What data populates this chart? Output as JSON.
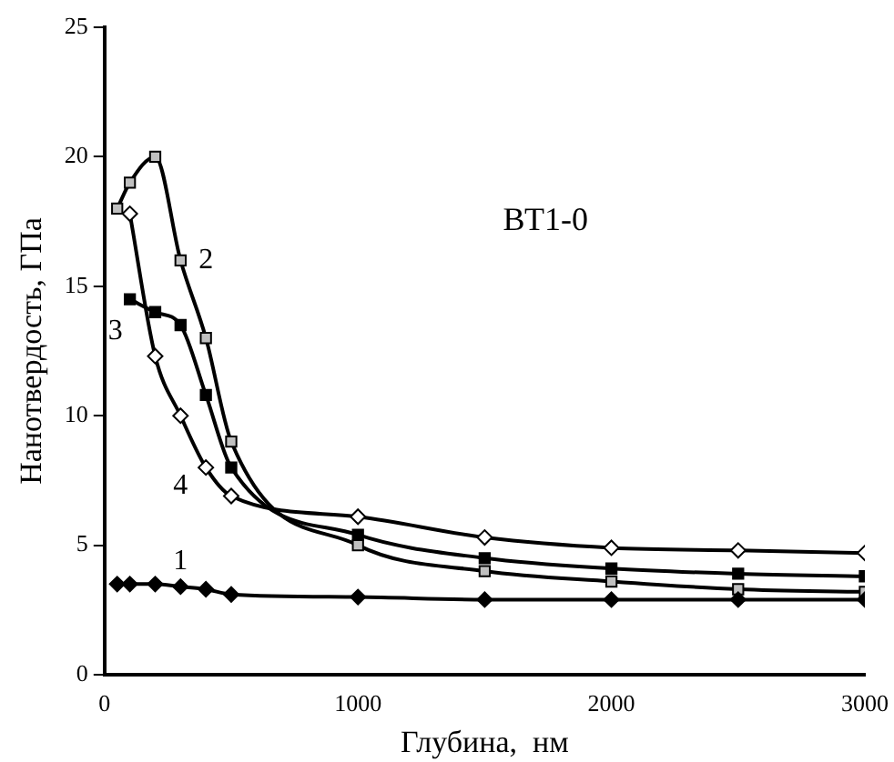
{
  "chart_data": {
    "type": "line",
    "xlabel": "Глубина,  нм",
    "ylabel": "Нанотвердость, ГПа",
    "annotations": [
      "ВТ1-0"
    ],
    "xlim": [
      0,
      3000
    ],
    "xticks": [
      0,
      1000,
      2000,
      3000
    ],
    "ylim": [
      0,
      25
    ],
    "yticks": [
      0,
      5,
      10,
      15,
      20,
      25
    ],
    "grid": false,
    "legend": false,
    "series": [
      {
        "name": "1",
        "color": "#000000",
        "marker": "diamond",
        "x": [
          50,
          100,
          200,
          300,
          400,
          500,
          1000,
          1500,
          2000,
          2500,
          3000
        ],
        "values": [
          3.5,
          3.5,
          3.5,
          3.4,
          3.3,
          3.1,
          3.0,
          2.9,
          2.9,
          2.9,
          2.9
        ]
      },
      {
        "name": "2",
        "color": "#c0c0c0",
        "marker": "square",
        "x": [
          50,
          100,
          200,
          300,
          400,
          500,
          1000,
          1500,
          2000,
          2500,
          3000
        ],
        "values": [
          18,
          19,
          20,
          16,
          13,
          9,
          5.0,
          4.0,
          3.6,
          3.3,
          3.2
        ]
      },
      {
        "name": "3",
        "color": "#000000",
        "marker": "square",
        "x": [
          100,
          200,
          300,
          400,
          500,
          1000,
          1500,
          2000,
          2500,
          3000
        ],
        "values": [
          14.5,
          14,
          13.5,
          10.8,
          8,
          5.4,
          4.5,
          4.1,
          3.9,
          3.8
        ]
      },
      {
        "name": "4",
        "color": "#ffffff",
        "marker": "diamond",
        "x": [
          100,
          200,
          300,
          400,
          500,
          1000,
          1500,
          2000,
          2500,
          3000
        ],
        "values": [
          17.8,
          12.3,
          10,
          8,
          6.9,
          6.1,
          5.3,
          4.9,
          4.8,
          4.7
        ]
      }
    ]
  }
}
